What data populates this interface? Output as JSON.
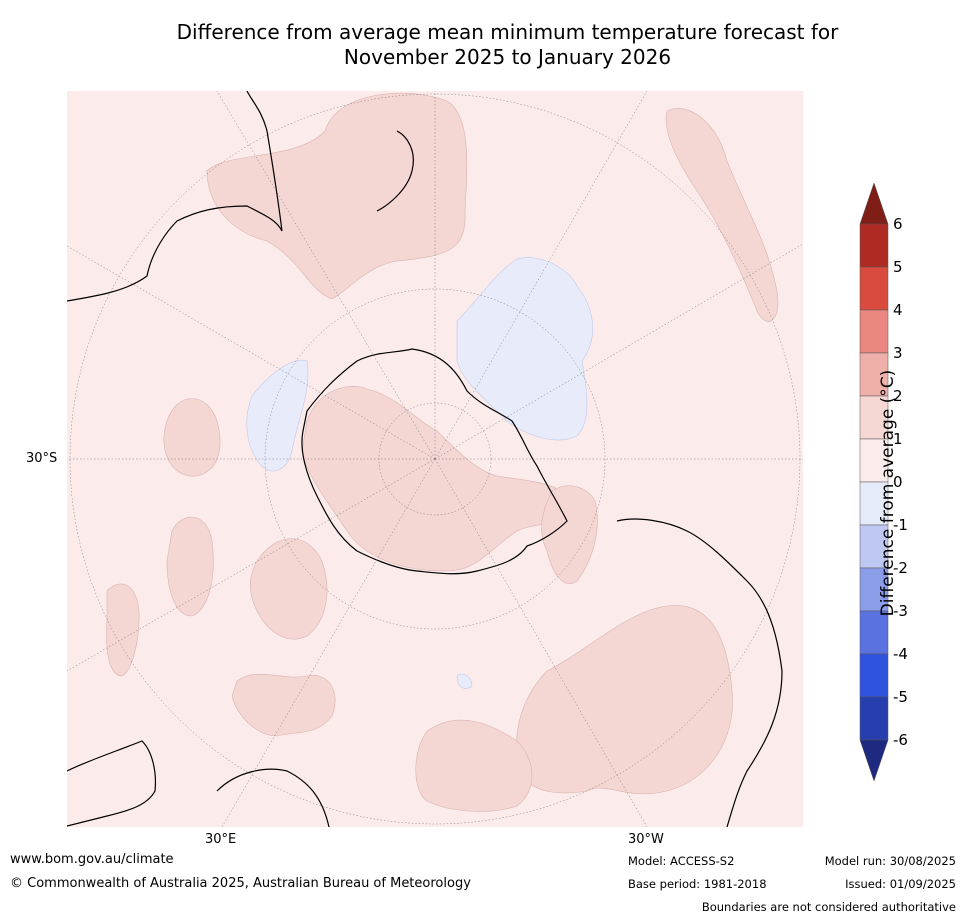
{
  "title_line1": "Difference from average mean minimum temperature forecast for",
  "title_line2": "November 2025 to January 2026",
  "map_labels": {
    "lat_30s": "30°S",
    "lon_30e": "30°E",
    "lon_30w": "30°W"
  },
  "colorbar": {
    "title": "Difference from average (°C)",
    "ticks": [
      "6",
      "5",
      "4",
      "3",
      "2",
      "1",
      "0",
      "-1",
      "-2",
      "-3",
      "-4",
      "-5",
      "-6"
    ],
    "colors": [
      "#7f1d17",
      "#ae2a22",
      "#d94b3f",
      "#e98780",
      "#efb0aa",
      "#f5d7d4",
      "#fbeceb",
      "#e6ebfa",
      "#bfc8f2",
      "#8b9ce8",
      "#5a72e0",
      "#2f53df",
      "#273fae",
      "#1e2a7f"
    ]
  },
  "footer": {
    "website": "www.bom.gov.au/climate",
    "copyright": "© Commonwealth of Australia 2025, Australian Bureau of Meteorology",
    "model": "Model: ACCESS-S2",
    "base_period": "Base period: 1981-2018",
    "model_run": "Model run: 30/08/2025",
    "issued": "Issued: 01/09/2025",
    "disclaimer": "Boundaries are not considered authoritative"
  }
}
